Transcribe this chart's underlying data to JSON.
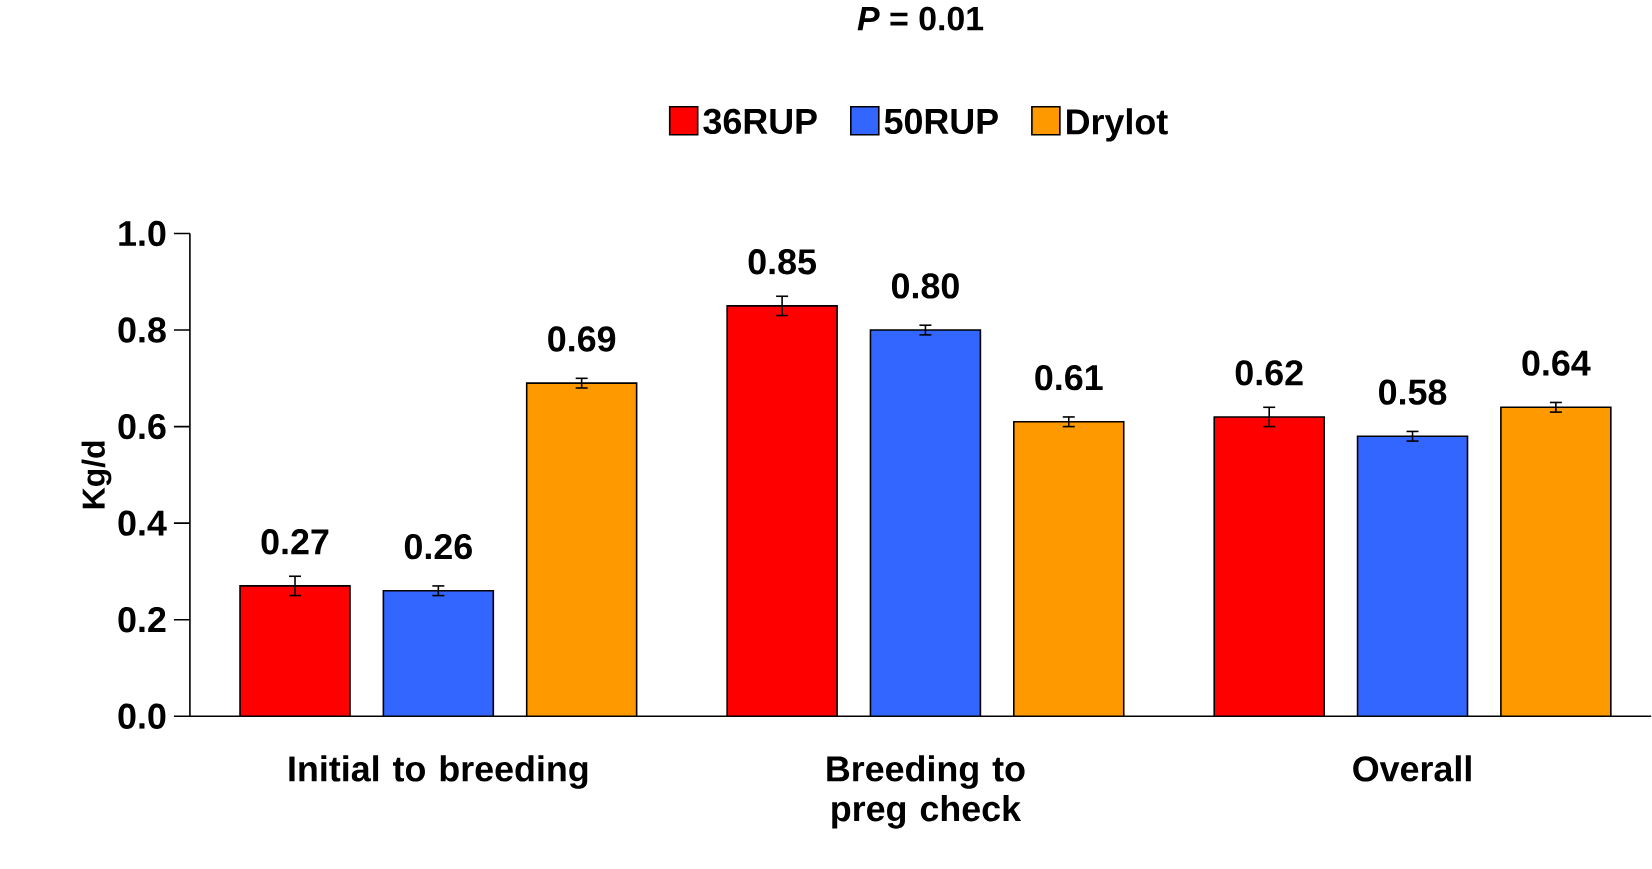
{
  "chart_data": {
    "type": "bar",
    "title": "*P* = 0.01",
    "ylabel": "Kg/d",
    "categories": [
      "Initial to breeding",
      "Breeding to preg check",
      "Overall"
    ],
    "series": [
      {
        "name": "36RUP",
        "color": "#ff0000",
        "values": [
          0.27,
          0.85,
          0.62
        ],
        "errors": [
          0.02,
          0.02,
          0.02
        ],
        "value_labels": [
          "0.27",
          "0.85",
          "0.62"
        ]
      },
      {
        "name": "50RUP",
        "color": "#3366ff",
        "values": [
          0.26,
          0.8,
          0.58
        ],
        "errors": [
          0.01,
          0.01,
          0.01
        ],
        "value_labels": [
          "0.26",
          "0.80",
          "0.58"
        ]
      },
      {
        "name": "Drylot",
        "color": "#ff9900",
        "values": [
          0.69,
          0.61,
          0.64
        ],
        "errors": [
          0.01,
          0.01,
          0.01
        ],
        "value_labels": [
          "0.69",
          "0.61",
          "0.64"
        ]
      }
    ],
    "ylim": [
      0,
      1
    ],
    "yticks": [
      {
        "value": 0,
        "label": "0.0"
      },
      {
        "value": 0.2,
        "label": "0.2"
      },
      {
        "value": 0.4,
        "label": "0.4"
      },
      {
        "value": 0.6,
        "label": "0.6"
      },
      {
        "value": 0.8,
        "label": "0.8"
      },
      {
        "value": 1,
        "label": "1.0"
      }
    ],
    "legend": "top",
    "grid": false
  }
}
